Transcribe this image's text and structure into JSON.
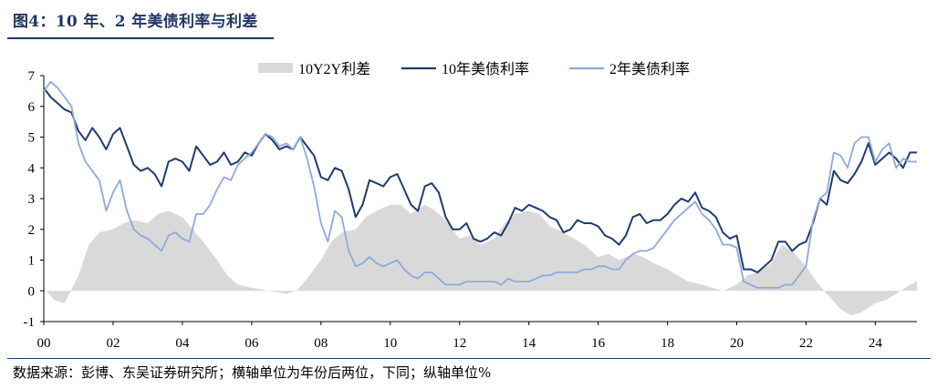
{
  "figure": {
    "title": "图4：10 年、2 年美债利率与利差",
    "source_note": "数据来源：彭博、东吴证券研究所；横轴单位为年份后两位，下同；纵轴单位%"
  },
  "chart_data": {
    "type": "line",
    "title": "",
    "xlabel": "",
    "ylabel": "",
    "x_ticks": [
      "00",
      "02",
      "04",
      "06",
      "08",
      "10",
      "12",
      "14",
      "16",
      "18",
      "20",
      "22",
      "24"
    ],
    "xlim": [
      2000.0,
      2025.2
    ],
    "y_ticks": [
      "7",
      "6",
      "5",
      "4",
      "3",
      "2",
      "1",
      "0",
      "-1"
    ],
    "ylim": [
      -1,
      7
    ],
    "grid": false,
    "legend": {
      "position": "top-center"
    },
    "colors": {
      "spread": "#d9d9d9",
      "ten_year": "#1f3c6e",
      "two_year": "#8ea9db"
    },
    "series": [
      {
        "name": "10Y2Y利差",
        "kind": "area",
        "x": [
          2000.0,
          2000.3,
          2000.6,
          2001.0,
          2001.3,
          2001.6,
          2002.0,
          2002.3,
          2002.6,
          2003.0,
          2003.3,
          2003.6,
          2004.0,
          2004.3,
          2004.6,
          2005.0,
          2005.3,
          2005.6,
          2006.0,
          2006.5,
          2007.0,
          2007.3,
          2007.6,
          2008.0,
          2008.3,
          2008.6,
          2009.0,
          2009.3,
          2009.6,
          2010.0,
          2010.3,
          2010.6,
          2011.0,
          2011.3,
          2011.6,
          2012.0,
          2012.3,
          2012.6,
          2013.0,
          2013.3,
          2013.6,
          2014.0,
          2014.3,
          2014.6,
          2015.0,
          2015.3,
          2015.6,
          2016.0,
          2016.3,
          2016.6,
          2017.0,
          2017.3,
          2017.6,
          2018.0,
          2018.3,
          2018.6,
          2019.0,
          2019.3,
          2019.6,
          2020.0,
          2020.3,
          2020.6,
          2021.0,
          2021.3,
          2021.6,
          2022.0,
          2022.3,
          2022.6,
          2023.0,
          2023.3,
          2023.6,
          2024.0,
          2024.3,
          2024.6,
          2025.0,
          2025.2
        ],
        "values": [
          0.1,
          -0.3,
          -0.4,
          0.5,
          1.5,
          1.9,
          2.0,
          2.2,
          2.3,
          2.2,
          2.5,
          2.6,
          2.4,
          2.0,
          1.6,
          1.0,
          0.5,
          0.2,
          0.1,
          0.0,
          -0.1,
          0.0,
          0.4,
          1.0,
          1.6,
          1.9,
          2.0,
          2.4,
          2.6,
          2.8,
          2.8,
          2.5,
          2.8,
          2.6,
          2.3,
          1.7,
          1.8,
          1.5,
          1.7,
          2.2,
          2.5,
          2.6,
          2.5,
          2.1,
          1.9,
          1.7,
          1.5,
          1.1,
          1.2,
          1.0,
          1.2,
          1.1,
          0.9,
          0.7,
          0.5,
          0.3,
          0.2,
          0.1,
          0.0,
          0.2,
          0.5,
          0.6,
          0.9,
          1.5,
          1.3,
          0.8,
          0.3,
          -0.1,
          -0.6,
          -0.8,
          -0.7,
          -0.4,
          -0.3,
          -0.1,
          0.2,
          0.3
        ]
      },
      {
        "name": "10年美债利率",
        "kind": "line",
        "x": [
          2000.0,
          2000.2,
          2000.4,
          2000.6,
          2000.8,
          2001.0,
          2001.2,
          2001.4,
          2001.6,
          2001.8,
          2002.0,
          2002.2,
          2002.4,
          2002.6,
          2002.8,
          2003.0,
          2003.2,
          2003.4,
          2003.6,
          2003.8,
          2004.0,
          2004.2,
          2004.4,
          2004.6,
          2004.8,
          2005.0,
          2005.2,
          2005.4,
          2005.6,
          2005.8,
          2006.0,
          2006.2,
          2006.4,
          2006.6,
          2006.8,
          2007.0,
          2007.2,
          2007.4,
          2007.6,
          2007.8,
          2008.0,
          2008.2,
          2008.4,
          2008.6,
          2008.8,
          2009.0,
          2009.2,
          2009.4,
          2009.6,
          2009.8,
          2010.0,
          2010.2,
          2010.4,
          2010.6,
          2010.8,
          2011.0,
          2011.2,
          2011.4,
          2011.6,
          2011.8,
          2012.0,
          2012.2,
          2012.4,
          2012.6,
          2012.8,
          2013.0,
          2013.2,
          2013.4,
          2013.6,
          2013.8,
          2014.0,
          2014.2,
          2014.4,
          2014.6,
          2014.8,
          2015.0,
          2015.2,
          2015.4,
          2015.6,
          2015.8,
          2016.0,
          2016.2,
          2016.4,
          2016.6,
          2016.8,
          2017.0,
          2017.2,
          2017.4,
          2017.6,
          2017.8,
          2018.0,
          2018.2,
          2018.4,
          2018.6,
          2018.8,
          2019.0,
          2019.2,
          2019.4,
          2019.6,
          2019.8,
          2020.0,
          2020.2,
          2020.4,
          2020.6,
          2020.8,
          2021.0,
          2021.2,
          2021.4,
          2021.6,
          2021.8,
          2022.0,
          2022.2,
          2022.4,
          2022.6,
          2022.8,
          2023.0,
          2023.2,
          2023.4,
          2023.6,
          2023.8,
          2024.0,
          2024.2,
          2024.4,
          2024.6,
          2024.8,
          2025.0,
          2025.2
        ],
        "values": [
          6.6,
          6.3,
          6.1,
          5.9,
          5.8,
          5.2,
          4.9,
          5.3,
          5.0,
          4.6,
          5.1,
          5.3,
          4.7,
          4.1,
          3.9,
          4.0,
          3.8,
          3.4,
          4.2,
          4.3,
          4.2,
          3.9,
          4.7,
          4.4,
          4.1,
          4.2,
          4.5,
          4.1,
          4.2,
          4.5,
          4.4,
          4.8,
          5.1,
          4.9,
          4.6,
          4.7,
          4.6,
          5.0,
          4.7,
          4.4,
          3.7,
          3.6,
          4.0,
          3.9,
          3.3,
          2.4,
          2.8,
          3.6,
          3.5,
          3.4,
          3.7,
          3.8,
          3.3,
          2.8,
          2.6,
          3.4,
          3.5,
          3.2,
          2.4,
          2.0,
          2.0,
          2.2,
          1.7,
          1.6,
          1.7,
          1.9,
          1.8,
          2.2,
          2.7,
          2.6,
          2.8,
          2.7,
          2.6,
          2.4,
          2.3,
          1.9,
          2.0,
          2.3,
          2.2,
          2.2,
          2.1,
          1.8,
          1.7,
          1.5,
          1.8,
          2.4,
          2.5,
          2.2,
          2.3,
          2.3,
          2.5,
          2.8,
          3.0,
          2.9,
          3.2,
          2.7,
          2.6,
          2.4,
          1.9,
          1.7,
          1.8,
          0.7,
          0.7,
          0.6,
          0.8,
          1.0,
          1.6,
          1.6,
          1.3,
          1.5,
          1.6,
          2.2,
          3.0,
          2.8,
          3.9,
          3.6,
          3.5,
          3.8,
          4.2,
          4.8,
          4.1,
          4.3,
          4.5,
          4.3,
          4.0,
          4.5,
          4.5
        ]
      },
      {
        "name": "2年美债利率",
        "kind": "line",
        "x": [
          2000.0,
          2000.2,
          2000.4,
          2000.6,
          2000.8,
          2001.0,
          2001.2,
          2001.4,
          2001.6,
          2001.8,
          2002.0,
          2002.2,
          2002.4,
          2002.6,
          2002.8,
          2003.0,
          2003.2,
          2003.4,
          2003.6,
          2003.8,
          2004.0,
          2004.2,
          2004.4,
          2004.6,
          2004.8,
          2005.0,
          2005.2,
          2005.4,
          2005.6,
          2005.8,
          2006.0,
          2006.2,
          2006.4,
          2006.6,
          2006.8,
          2007.0,
          2007.2,
          2007.4,
          2007.6,
          2007.8,
          2008.0,
          2008.2,
          2008.4,
          2008.6,
          2008.8,
          2009.0,
          2009.2,
          2009.4,
          2009.6,
          2009.8,
          2010.0,
          2010.2,
          2010.4,
          2010.6,
          2010.8,
          2011.0,
          2011.2,
          2011.4,
          2011.6,
          2011.8,
          2012.0,
          2012.2,
          2012.4,
          2012.6,
          2012.8,
          2013.0,
          2013.2,
          2013.4,
          2013.6,
          2013.8,
          2014.0,
          2014.2,
          2014.4,
          2014.6,
          2014.8,
          2015.0,
          2015.2,
          2015.4,
          2015.6,
          2015.8,
          2016.0,
          2016.2,
          2016.4,
          2016.6,
          2016.8,
          2017.0,
          2017.2,
          2017.4,
          2017.6,
          2017.8,
          2018.0,
          2018.2,
          2018.4,
          2018.6,
          2018.8,
          2019.0,
          2019.2,
          2019.4,
          2019.6,
          2019.8,
          2020.0,
          2020.2,
          2020.4,
          2020.6,
          2020.8,
          2021.0,
          2021.2,
          2021.4,
          2021.6,
          2021.8,
          2022.0,
          2022.2,
          2022.4,
          2022.6,
          2022.8,
          2023.0,
          2023.2,
          2023.4,
          2023.6,
          2023.8,
          2024.0,
          2024.2,
          2024.4,
          2024.6,
          2024.8,
          2025.0,
          2025.2
        ],
        "values": [
          6.5,
          6.8,
          6.6,
          6.3,
          6.0,
          4.8,
          4.2,
          3.9,
          3.6,
          2.6,
          3.2,
          3.6,
          2.6,
          2.0,
          1.8,
          1.7,
          1.5,
          1.3,
          1.8,
          1.9,
          1.7,
          1.6,
          2.5,
          2.5,
          2.8,
          3.3,
          3.7,
          3.6,
          4.1,
          4.3,
          4.5,
          4.8,
          5.1,
          5.0,
          4.7,
          4.8,
          4.6,
          5.0,
          4.3,
          3.4,
          2.2,
          1.6,
          2.6,
          2.4,
          1.3,
          0.8,
          0.9,
          1.1,
          0.9,
          0.8,
          0.9,
          1.0,
          0.7,
          0.5,
          0.4,
          0.6,
          0.6,
          0.4,
          0.2,
          0.2,
          0.2,
          0.3,
          0.3,
          0.3,
          0.3,
          0.3,
          0.2,
          0.4,
          0.3,
          0.3,
          0.3,
          0.4,
          0.5,
          0.5,
          0.6,
          0.6,
          0.6,
          0.6,
          0.7,
          0.7,
          0.8,
          0.8,
          0.7,
          0.7,
          1.0,
          1.2,
          1.3,
          1.3,
          1.4,
          1.7,
          2.0,
          2.3,
          2.5,
          2.7,
          2.9,
          2.5,
          2.3,
          2.0,
          1.5,
          1.5,
          1.4,
          0.3,
          0.2,
          0.1,
          0.1,
          0.1,
          0.1,
          0.2,
          0.2,
          0.5,
          0.8,
          2.3,
          3.0,
          3.2,
          4.5,
          4.4,
          4.0,
          4.8,
          5.0,
          5.0,
          4.2,
          4.6,
          4.8,
          4.0,
          4.3,
          4.2,
          4.2
        ]
      }
    ]
  }
}
